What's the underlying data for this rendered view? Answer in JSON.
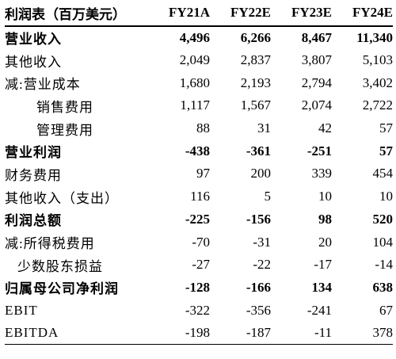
{
  "table": {
    "header": [
      "利润表（百万美元）",
      "FY21A",
      "FY22E",
      "FY23E",
      "FY24E"
    ],
    "rows": [
      {
        "label": "营业收入",
        "values": [
          "4,496",
          "6,266",
          "8,467",
          "11,340"
        ],
        "bold": true,
        "indent": 0
      },
      {
        "label": "其他收入",
        "values": [
          "2,049",
          "2,837",
          "3,807",
          "5,103"
        ],
        "bold": false,
        "indent": 0
      },
      {
        "label": "减:营业成本",
        "values": [
          "1,680",
          "2,193",
          "2,794",
          "3,402"
        ],
        "bold": false,
        "indent": 0
      },
      {
        "label": "销售费用",
        "values": [
          "1,117",
          "1,567",
          "2,074",
          "2,722"
        ],
        "bold": false,
        "indent": 2
      },
      {
        "label": "管理费用",
        "values": [
          "88",
          "31",
          "42",
          "57"
        ],
        "bold": false,
        "indent": 2
      },
      {
        "label": "营业利润",
        "values": [
          "-438",
          "-361",
          "-251",
          "57"
        ],
        "bold": true,
        "indent": 0
      },
      {
        "label": "财务费用",
        "values": [
          "97",
          "200",
          "339",
          "454"
        ],
        "bold": false,
        "indent": 0
      },
      {
        "label": "其他收入（支出）",
        "values": [
          "116",
          "5",
          "10",
          "10"
        ],
        "bold": false,
        "indent": 0
      },
      {
        "label": "利润总额",
        "values": [
          "-225",
          "-156",
          "98",
          "520"
        ],
        "bold": true,
        "indent": 0
      },
      {
        "label": "减:所得税费用",
        "values": [
          "-70",
          "-31",
          "20",
          "104"
        ],
        "bold": false,
        "indent": 0
      },
      {
        "label": "少数股东损益",
        "values": [
          "-27",
          "-22",
          "-17",
          "-14"
        ],
        "bold": false,
        "indent": 1
      },
      {
        "label": "归属母公司净利润",
        "values": [
          "-128",
          "-166",
          "134",
          "638"
        ],
        "bold": true,
        "indent": 0
      },
      {
        "label": "EBIT",
        "values": [
          "-322",
          "-356",
          "-241",
          "67"
        ],
        "bold": false,
        "indent": 0
      },
      {
        "label": "EBITDA",
        "values": [
          "-198",
          "-187",
          "-11",
          "378"
        ],
        "bold": false,
        "indent": 0
      }
    ]
  }
}
